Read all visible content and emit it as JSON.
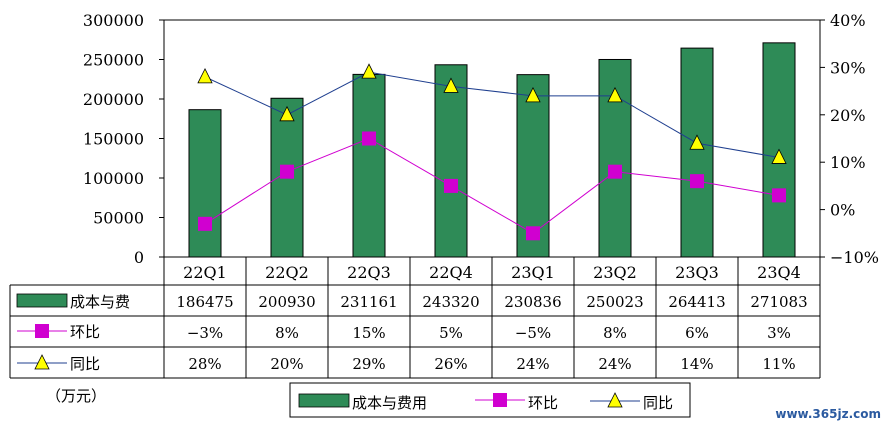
{
  "chart_data": {
    "type": "bar",
    "categories": [
      "22Q1",
      "22Q2",
      "22Q3",
      "22Q4",
      "23Q1",
      "23Q2",
      "23Q3",
      "23Q4"
    ],
    "series": [
      {
        "name": "成本与费用",
        "type": "bar",
        "axis": "left",
        "color": "#2e8b57",
        "values": [
          186475,
          200930,
          231161,
          243320,
          230836,
          250023,
          264413,
          271083
        ],
        "labels": [
          "186475",
          "200930",
          "231161",
          "243320",
          "230836",
          "250023",
          "264413",
          "271083"
        ]
      },
      {
        "name": "环比",
        "type": "line",
        "axis": "right",
        "color": "#d000d0",
        "marker": "square",
        "values": [
          -3,
          8,
          15,
          5,
          -5,
          8,
          6,
          3
        ],
        "labels": [
          "−3%",
          "8%",
          "15%",
          "5%",
          "−5%",
          "8%",
          "6%",
          "3%"
        ]
      },
      {
        "name": "同比",
        "type": "line",
        "axis": "right",
        "color": "#1f3f8f",
        "marker": "triangle",
        "values": [
          28,
          20,
          29,
          26,
          24,
          24,
          14,
          11
        ],
        "labels": [
          "28%",
          "20%",
          "29%",
          "26%",
          "24%",
          "24%",
          "14%",
          "11%"
        ]
      }
    ],
    "table_row_labels": [
      "成本与费",
      "环比",
      "同比"
    ],
    "y_left": {
      "range": [
        0,
        300000
      ],
      "ticks": [
        "0",
        "50000",
        "100000",
        "150000",
        "200000",
        "250000",
        "300000"
      ]
    },
    "y_right": {
      "range": [
        -10,
        40
      ],
      "unit": "%",
      "ticks": [
        "−10%",
        "0%",
        "10%",
        "20%",
        "30%",
        "40%"
      ]
    },
    "unit_note": "（万元）",
    "legend": {
      "position": "bottom",
      "items": [
        "成本与费用",
        "环比",
        "同比"
      ]
    },
    "grid": false,
    "watermark": "www.365jz.com"
  }
}
